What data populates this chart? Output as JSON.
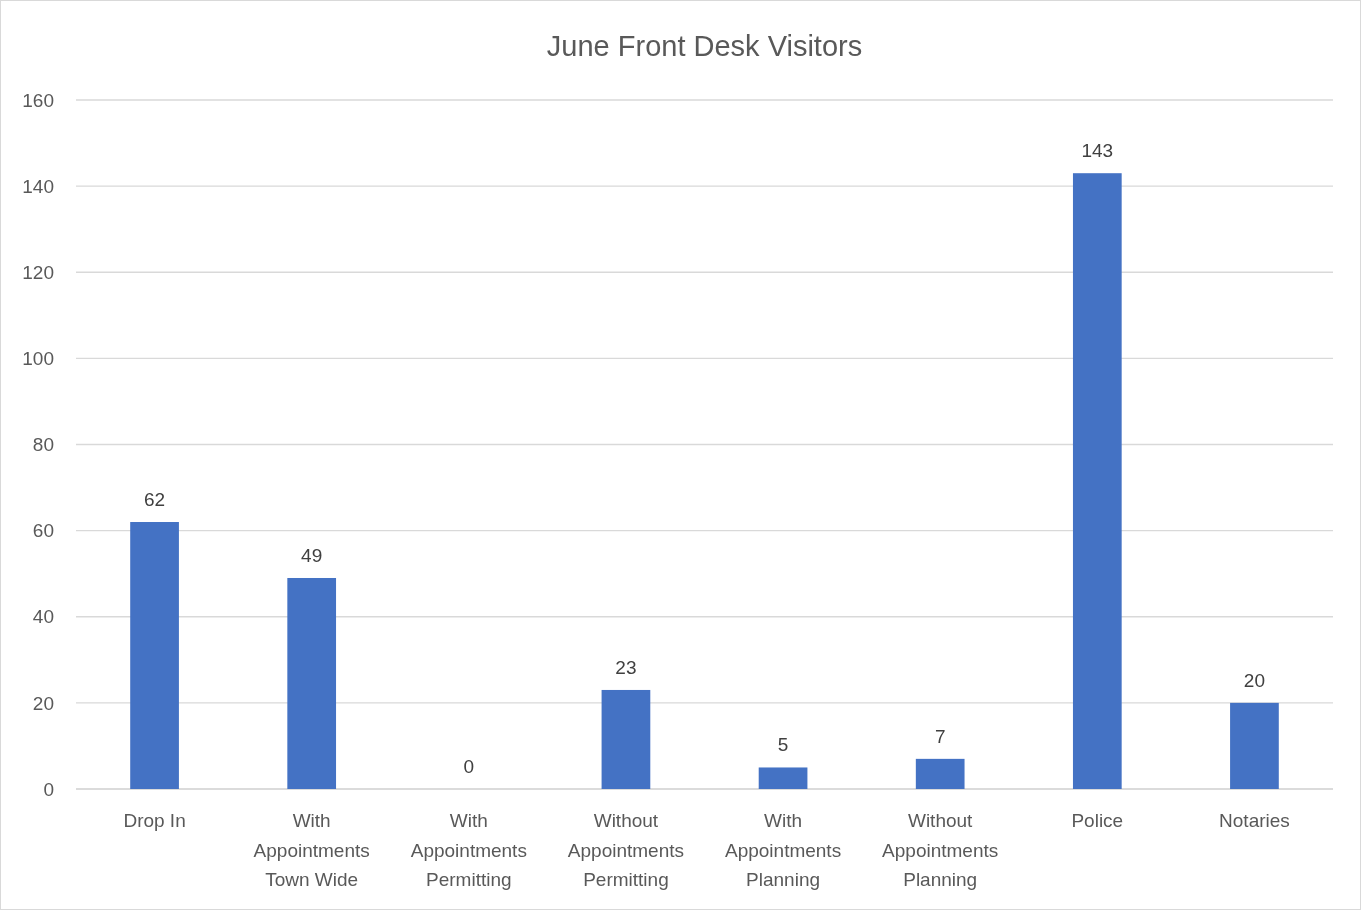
{
  "chart_data": {
    "type": "bar",
    "title": "June Front Desk Visitors",
    "categories": [
      "Drop In",
      "With Appointments Town Wide",
      "With Appointments Permitting",
      "Without Appointments Permitting",
      "With Appointments Planning",
      "Without Appointments Planning",
      "Police",
      "Notaries"
    ],
    "values": [
      62,
      49,
      0,
      23,
      5,
      7,
      143,
      20
    ],
    "color": "#4472c4",
    "ylim": [
      0,
      160
    ],
    "yticks": [
      0,
      20,
      40,
      60,
      80,
      100,
      120,
      140,
      160
    ],
    "grid": true,
    "data_labels": true
  }
}
